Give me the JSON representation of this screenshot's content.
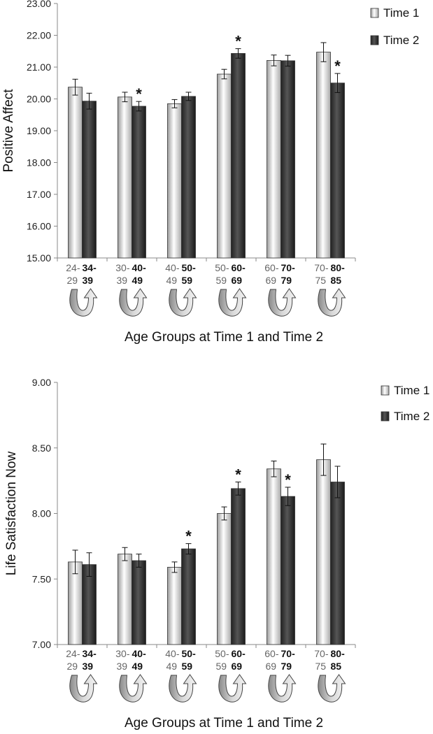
{
  "chart_data": [
    {
      "type": "bar",
      "ylabel": "Positive Affect",
      "xlabel": "Age Groups at Time 1 and Time 2",
      "ylim": [
        15.0,
        23.0
      ],
      "yticks": [
        "15.00",
        "16.00",
        "17.00",
        "18.00",
        "19.00",
        "20.00",
        "21.00",
        "22.00",
        "23.00"
      ],
      "categories_time1": [
        "24-29",
        "30-39",
        "40-49",
        "50-59",
        "60-69",
        "70-75"
      ],
      "categories_time2": [
        "34-39",
        "40-49",
        "50-59",
        "60-69",
        "70-79",
        "80-85"
      ],
      "series": [
        {
          "name": "Time 1",
          "values": [
            20.37,
            20.06,
            19.85,
            20.78,
            21.21,
            21.47
          ],
          "errors": [
            0.25,
            0.15,
            0.13,
            0.15,
            0.17,
            0.3
          ]
        },
        {
          "name": "Time 2",
          "values": [
            19.93,
            19.77,
            20.08,
            21.43,
            21.2,
            20.5
          ],
          "errors": [
            0.25,
            0.15,
            0.13,
            0.15,
            0.17,
            0.3
          ]
        }
      ],
      "significance": [
        false,
        true,
        false,
        true,
        false,
        true
      ],
      "significance_marker": "*",
      "legend": [
        "Time 1",
        "Time 2"
      ],
      "legend_position": "top-right"
    },
    {
      "type": "bar",
      "ylabel": "Life Satisfaction Now",
      "xlabel": "Age Groups at Time 1 and Time 2",
      "ylim": [
        7.0,
        9.0
      ],
      "yticks": [
        "7.00",
        "7.50",
        "8.00",
        "8.50",
        "9.00"
      ],
      "categories_time1": [
        "24-29",
        "30-39",
        "40-49",
        "50-59",
        "60-69",
        "70-75"
      ],
      "categories_time2": [
        "34-39",
        "40-49",
        "50-59",
        "60-69",
        "70-79",
        "80-85"
      ],
      "series": [
        {
          "name": "Time 1",
          "values": [
            7.63,
            7.69,
            7.59,
            8.0,
            8.34,
            8.41
          ],
          "errors": [
            0.09,
            0.05,
            0.04,
            0.05,
            0.06,
            0.12
          ]
        },
        {
          "name": "Time 2",
          "values": [
            7.61,
            7.64,
            7.73,
            8.19,
            8.13,
            8.24
          ],
          "errors": [
            0.09,
            0.05,
            0.04,
            0.05,
            0.07,
            0.12
          ]
        }
      ],
      "significance": [
        false,
        false,
        true,
        true,
        true,
        false
      ],
      "significance_marker": "*",
      "legend": [
        "Time 1",
        "Time 2"
      ],
      "legend_position": "top-right"
    }
  ]
}
